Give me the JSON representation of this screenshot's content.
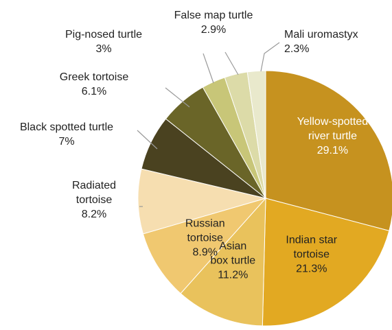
{
  "chart_data": {
    "type": "pie",
    "start_angle_deg": 90,
    "direction": "clockwise",
    "slices": [
      {
        "label": "Yellow-spotted river turtle",
        "lines": [
          "Yellow-spotted",
          "river turtle"
        ],
        "value_label": "29.1%",
        "value": 29.1,
        "color": "#c6921f",
        "label_placement": "inside",
        "label_color": "#ffffff"
      },
      {
        "label": "Indian star tortoise",
        "lines": [
          "Indian star",
          "tortoise"
        ],
        "value_label": "21.3%",
        "value": 21.3,
        "color": "#e2a922",
        "label_placement": "inside",
        "label_color": "#222222"
      },
      {
        "label": "Asian box turtle",
        "lines": [
          "Asian",
          "box turtle"
        ],
        "value_label": "11.2%",
        "value": 11.2,
        "color": "#e9c25c",
        "label_placement": "inside",
        "label_color": "#222222"
      },
      {
        "label": "Russian tortoise",
        "lines": [
          "Russian",
          "tortoise"
        ],
        "value_label": "8.9%",
        "value": 8.9,
        "color": "#f0c870",
        "label_placement": "inside",
        "label_color": "#222222"
      },
      {
        "label": "Radiated tortoise",
        "lines": [
          "Radiated",
          "tortoise"
        ],
        "value_label": "8.2%",
        "value": 8.2,
        "color": "#f6deb0",
        "label_placement": "outside",
        "label_color": "#222222"
      },
      {
        "label": "Black spotted turtle",
        "lines": [
          "Black spotted turtle"
        ],
        "value_label": "7%",
        "value": 7.0,
        "color": "#4a4220",
        "label_placement": "outside",
        "label_color": "#222222"
      },
      {
        "label": "Greek tortoise",
        "lines": [
          "Greek tortoise"
        ],
        "value_label": "6.1%",
        "value": 6.1,
        "color": "#6a6528",
        "label_placement": "outside",
        "label_color": "#222222"
      },
      {
        "label": "Pig-nosed turtle",
        "lines": [
          "Pig-nosed turtle"
        ],
        "value_label": "3%",
        "value": 3.0,
        "color": "#c8c678",
        "label_placement": "outside",
        "label_color": "#222222"
      },
      {
        "label": "False map turtle",
        "lines": [
          "False map turtle"
        ],
        "value_label": "2.9%",
        "value": 2.9,
        "color": "#dcdba8",
        "label_placement": "outside",
        "label_color": "#222222"
      },
      {
        "label": "Mali uromastyx",
        "lines": [
          "Mali uromastyx"
        ],
        "value_label": "2.3%",
        "value": 2.3,
        "color": "#e9e9cc",
        "label_placement": "outside",
        "label_color": "#222222"
      }
    ]
  }
}
